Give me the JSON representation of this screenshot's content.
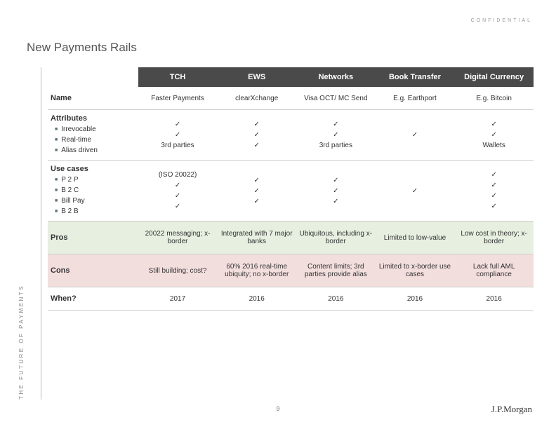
{
  "meta": {
    "confidential": "CONFIDENTIAL",
    "title": "New Payments Rails",
    "side_text": "THE FUTURE OF PAYMENTS",
    "page_number": "9",
    "logo": "J.P.Morgan"
  },
  "columns": [
    "TCH",
    "EWS",
    "Networks",
    "Book Transfer",
    "Digital Currency"
  ],
  "rows": {
    "name": {
      "label": "Name",
      "values": [
        "Faster Payments",
        "clearXchange",
        "Visa OCT/  MC Send",
        "E.g. Earthport",
        "E.g. Bitcoin"
      ]
    },
    "attributes": {
      "label": "Attributes",
      "items": [
        "Irrevocable",
        "Real-time",
        "Alias driven"
      ],
      "grid": [
        [
          "✓",
          "✓",
          "✓",
          "✓",
          "✓"
        ],
        [
          "✓",
          "✓",
          "✓",
          "",
          "✓"
        ],
        [
          "3rd parties",
          "✓",
          "3rd parties",
          "",
          "Wallets"
        ]
      ]
    },
    "usecases": {
      "label": "Use cases",
      "note": "(ISO 20022)",
      "items": [
        "P 2 P",
        "B 2 C",
        "Bill Pay",
        "B 2 B"
      ],
      "grid": [
        [
          "",
          "✓",
          "✓",
          "",
          "✓"
        ],
        [
          "✓",
          "✓",
          "✓",
          "",
          "✓"
        ],
        [
          "✓",
          "✓",
          "✓",
          "",
          "✓"
        ],
        [
          "✓",
          "",
          "",
          "✓",
          "✓"
        ]
      ]
    },
    "pros": {
      "label": "Pros",
      "values": [
        "20022 messaging; x-border",
        "Integrated with 7 major banks",
        "Ubiquitous, including x-border",
        "Limited to low-value",
        "Low cost in theory; x-border"
      ]
    },
    "cons": {
      "label": "Cons",
      "values": [
        "Still building; cost?",
        "60% 2016 real-time ubiquity; no x-border",
        "Content limits; 3rd parties provide alias",
        "Limited to x-border use cases",
        "Lack full AML compliance"
      ]
    },
    "when": {
      "label": "When?",
      "values": [
        "2017",
        "2016",
        "2016",
        "2016",
        "2016"
      ]
    }
  },
  "colors": {
    "header_bg": "#4a4a4a",
    "pros_bg": "#e6efe0",
    "cons_bg": "#f3dede",
    "bullet": "#5a6e7a"
  }
}
